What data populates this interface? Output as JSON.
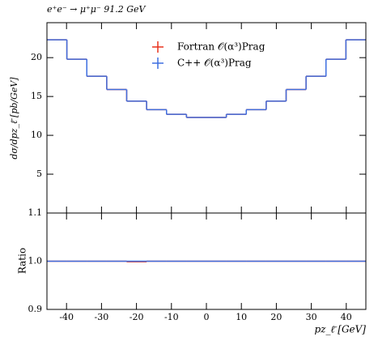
{
  "chart_data": {
    "type": "histogram",
    "title": "e⁺e⁻ → μ⁺μ⁻ 91.2 GeV",
    "ylabel": "dσ/dpz_ℓ̄ [pb/GeV]",
    "xlabel": "pz_ℓ̄ [GeV]",
    "ratio_ylabel": "Ratio",
    "bins": [
      -45.6,
      -39.9,
      -34.2,
      -28.5,
      -22.8,
      -17.1,
      -11.4,
      -5.7,
      0,
      5.7,
      11.4,
      17.1,
      22.8,
      28.5,
      34.2,
      39.9,
      45.6
    ],
    "xlim": [
      -45.6,
      45.6
    ],
    "xticks": [
      -40,
      -30,
      -20,
      -10,
      0,
      10,
      20,
      30,
      40
    ],
    "ylim": [
      0,
      24.5
    ],
    "yticks": [
      5,
      10,
      15,
      20
    ],
    "ratio_ylim": [
      0.9,
      1.1
    ],
    "ratio_yticks": [
      {
        "value": 0.9,
        "label": "0.9"
      },
      {
        "value": 1.0,
        "label": "1.0"
      },
      {
        "value": 1.1,
        "label": "1.1"
      }
    ],
    "legend": "upper center",
    "series": [
      {
        "name": "Fortran 𝒪(α³)Prag",
        "color": "#e8321e",
        "values": [
          22.3,
          19.8,
          17.6,
          15.9,
          14.4,
          13.3,
          12.7,
          12.3,
          12.3,
          12.7,
          13.3,
          14.4,
          15.9,
          17.6,
          19.8,
          22.3
        ]
      },
      {
        "name": "C++ 𝒪(α³)Prag",
        "color": "#3e6fe0",
        "values": [
          22.3,
          19.8,
          17.6,
          15.9,
          14.4,
          13.3,
          12.7,
          12.3,
          12.3,
          12.7,
          13.3,
          14.4,
          15.9,
          17.6,
          19.8,
          22.3
        ]
      }
    ],
    "ratio_series": [
      {
        "color": "#e8321e",
        "values": [
          1.0,
          1.0,
          1.0,
          1.0,
          0.999,
          1.0,
          1.0,
          1.0,
          1.0,
          1.0,
          1.0,
          1.0,
          1.0,
          1.0,
          1.0,
          1.0
        ]
      },
      {
        "color": "#3e6fe0",
        "values": [
          1.0,
          1.0,
          1.0,
          1.0,
          1.0,
          1.0,
          1.0,
          1.0,
          1.0,
          1.0,
          1.0,
          1.0,
          1.0,
          1.0,
          1.0,
          1.0
        ]
      }
    ]
  }
}
